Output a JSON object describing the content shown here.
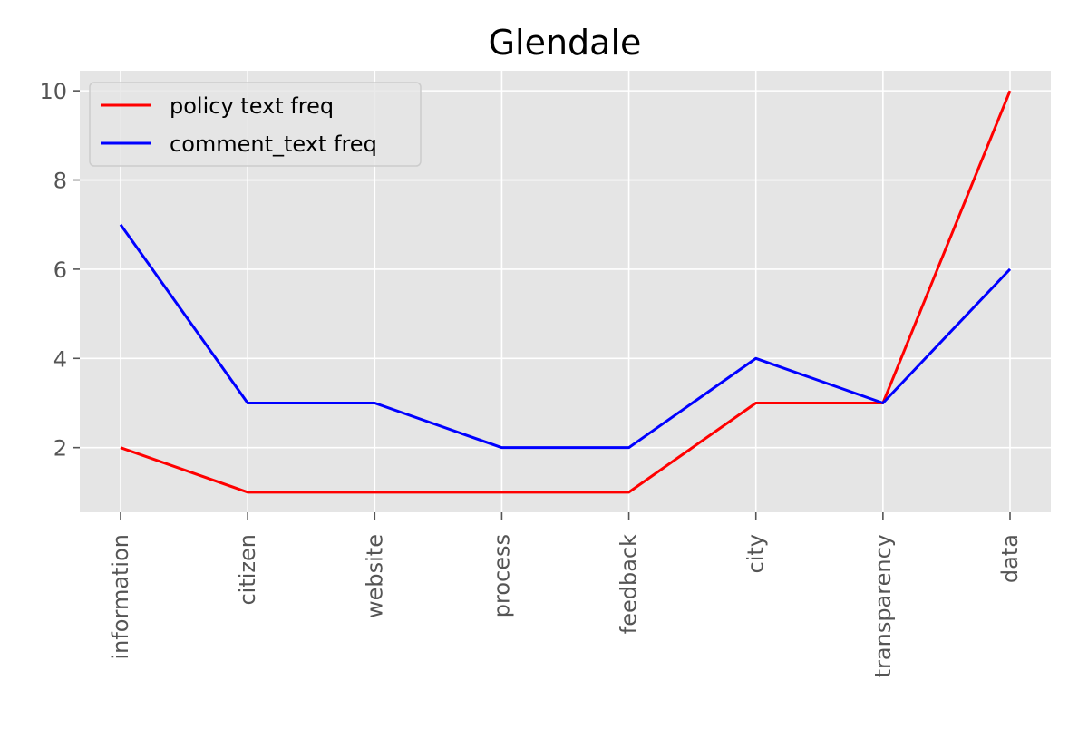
{
  "chart_data": {
    "type": "line",
    "title": "Glendale",
    "xlabel": "",
    "ylabel": "",
    "categories": [
      "information",
      "citizen",
      "website",
      "process",
      "feedback",
      "city",
      "transparency",
      "data"
    ],
    "series": [
      {
        "name": "policy text freq",
        "color": "#ff0000",
        "values": [
          2,
          1,
          1,
          1,
          1,
          3,
          3,
          10
        ]
      },
      {
        "name": "comment_text freq",
        "color": "#0000ff",
        "values": [
          7,
          3,
          3,
          2,
          2,
          4,
          3,
          6
        ]
      }
    ],
    "ylim": [
      0.55,
      10.45
    ],
    "yticks": [
      2,
      4,
      6,
      8,
      10
    ],
    "grid": true,
    "legend_position": "top-left",
    "background": "#e5e5e5"
  }
}
